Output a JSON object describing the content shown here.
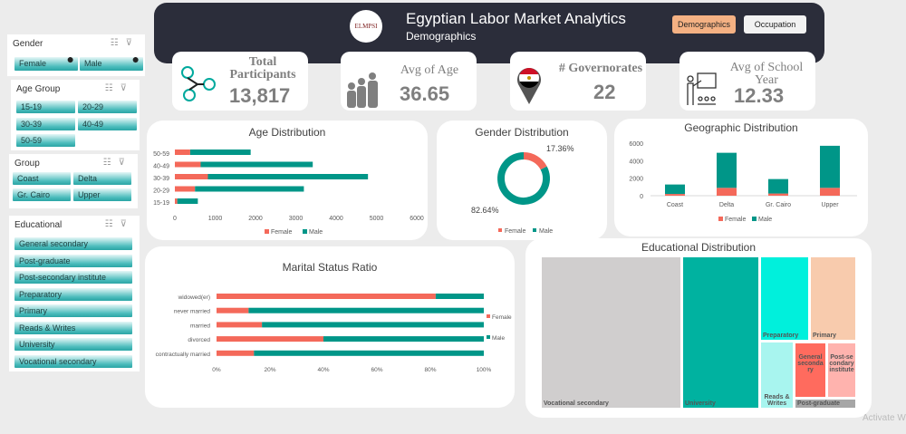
{
  "header": {
    "title": "Egyptian Labor Market Analytics",
    "subtitle": "Demographics",
    "logo_text": "ELMPSI",
    "nav": [
      {
        "label": "Demographics",
        "active": true
      },
      {
        "label": "Occupation",
        "active": false
      }
    ]
  },
  "kpis": [
    {
      "label": "Total Participants",
      "value": "13,817",
      "icon": "network-people-icon"
    },
    {
      "label": "Avg of Age",
      "value": "36.65",
      "icon": "family-icon"
    },
    {
      "label": "# Governorates",
      "value": "22",
      "icon": "egypt-flag-pin-icon"
    },
    {
      "label": "Avg of School Year",
      "value": "12.33",
      "icon": "teacher-icon"
    }
  ],
  "slicers": {
    "gender": {
      "title": "Gender",
      "items": [
        "Female",
        "Male"
      ]
    },
    "age_group": {
      "title": "Age Group",
      "items": [
        "15-19",
        "20-29",
        "30-39",
        "40-49",
        "50-59"
      ]
    },
    "group": {
      "title": "Group",
      "items": [
        "Coast",
        "Delta",
        "Gr. Cairo",
        "Upper"
      ]
    },
    "educational": {
      "title": "Educational",
      "items": [
        "General secondary",
        "Post-graduate",
        "Post-secondary institute",
        "Preparatory",
        "Primary",
        "Reads & Writes",
        "University",
        "Vocational secondary"
      ]
    }
  },
  "colors": {
    "female": "#f4695a",
    "male": "#009688",
    "header": "#2b2d3a",
    "accent": "#f4b183"
  },
  "chart_data": [
    {
      "id": "age",
      "type": "bar",
      "orientation": "horizontal",
      "stacked": true,
      "title": "Age Distribution",
      "categories": [
        "15-19",
        "20-29",
        "30-39",
        "40-49",
        "50-59"
      ],
      "series": [
        {
          "name": "Female",
          "values": [
            60,
            500,
            820,
            640,
            380
          ]
        },
        {
          "name": "Male",
          "values": [
            510,
            2700,
            3970,
            2780,
            1500
          ]
        }
      ],
      "xlim": [
        0,
        6000
      ],
      "ticks": [
        "0",
        "1000",
        "2000",
        "3000",
        "4000",
        "5000",
        "6000"
      ],
      "legend": "bottom"
    },
    {
      "id": "gender",
      "type": "pie",
      "donut": true,
      "title": "Gender Distribution",
      "categories": [
        "Female",
        "Male"
      ],
      "values": [
        17.36,
        82.64
      ],
      "labels": [
        "17.36%",
        "82.64%"
      ],
      "legend": "bottom"
    },
    {
      "id": "geo",
      "type": "bar",
      "stacked": true,
      "title": "Geographic Distribution",
      "categories": [
        "Coast",
        "Delta",
        "Gr. Cairo",
        "Upper"
      ],
      "series": [
        {
          "name": "Female",
          "values": [
            200,
            900,
            250,
            900
          ]
        },
        {
          "name": "Male",
          "values": [
            1080,
            4000,
            1650,
            4800
          ]
        }
      ],
      "ylim": [
        0,
        6000
      ],
      "ticks": [
        "0",
        "2000",
        "4000",
        "6000"
      ],
      "legend": "bottom"
    },
    {
      "id": "marital",
      "type": "bar",
      "orientation": "horizontal",
      "stacked": true,
      "percent": true,
      "title": "Marital Status Ratio",
      "categories": [
        "contractually married",
        "divorced",
        "married",
        "never married",
        "widowed(er)"
      ],
      "series": [
        {
          "name": "Female",
          "values": [
            14,
            40,
            17,
            12,
            82
          ]
        },
        {
          "name": "Male",
          "values": [
            86,
            60,
            83,
            88,
            18
          ]
        }
      ],
      "ticks": [
        "0%",
        "20%",
        "40%",
        "60%",
        "80%",
        "100%"
      ],
      "legend": "right"
    },
    {
      "id": "education",
      "type": "treemap",
      "title": "Educational Distribution",
      "items": [
        {
          "label": "Vocational secondary",
          "color": "#d0cece"
        },
        {
          "label": "University",
          "color": "#00b2a0"
        },
        {
          "label": "Preparatory",
          "color": "#00f0dc"
        },
        {
          "label": "Primary",
          "color": "#f8cbad"
        },
        {
          "label": "Reads & Writes",
          "color": "#a8f5ef"
        },
        {
          "label": "General secondary",
          "color": "#ff6b5e"
        },
        {
          "label": "Post-secondary institute",
          "color": "#ffb3ae"
        },
        {
          "label": "Post-graduate",
          "color": "#a6a6a6"
        }
      ]
    }
  ],
  "watermark": "Activate W"
}
